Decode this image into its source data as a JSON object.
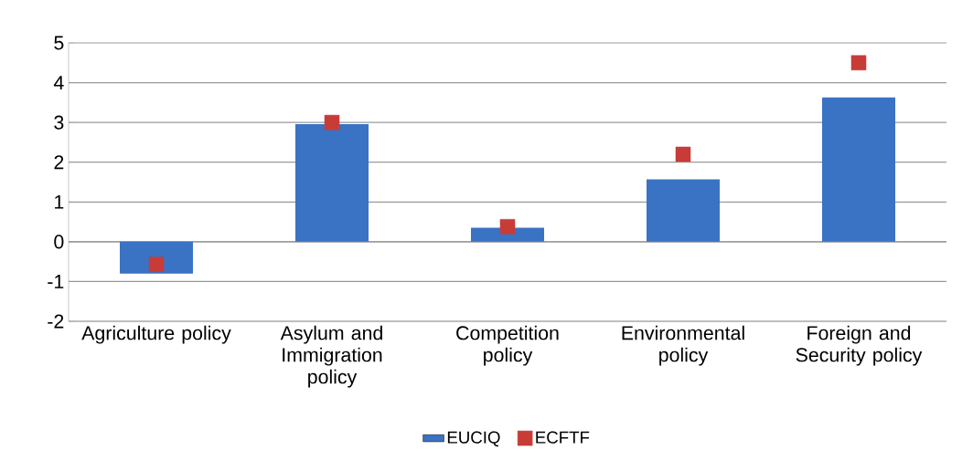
{
  "chart_data": {
    "type": "bar",
    "categories": [
      "Agriculture policy",
      "Asylum and Immigration policy",
      "Competition policy",
      "Environmental policy",
      "Foreign and Security policy"
    ],
    "series": [
      {
        "name": "EUCIQ",
        "color": "#3a72c4",
        "values": [
          -0.8,
          2.96,
          0.35,
          1.57,
          3.63
        ]
      },
      {
        "name": "ECFTF",
        "type": "scatter",
        "marker": "square",
        "color": "#c83c38",
        "values": [
          -0.57,
          3.0,
          0.38,
          2.2,
          4.5
        ]
      }
    ],
    "ylim": [
      -2,
      5
    ],
    "yticks": [
      -2,
      -1,
      0,
      1,
      2,
      3,
      4,
      5
    ],
    "grid": "y",
    "legend": "bottom"
  }
}
